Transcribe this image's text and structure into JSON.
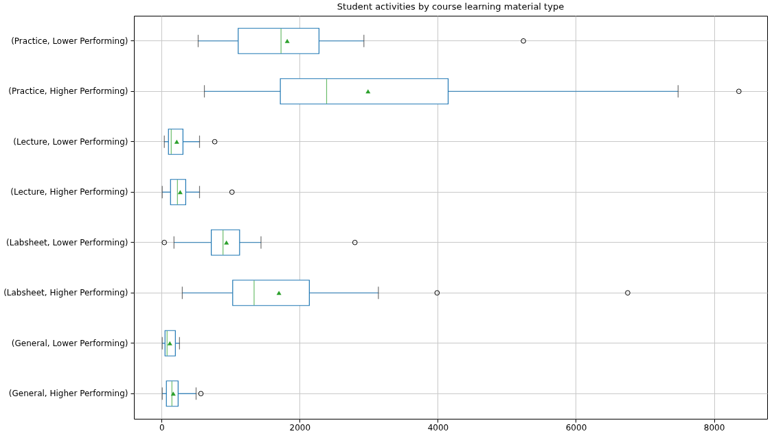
{
  "chart_data": {
    "type": "box",
    "title": "Student activities by course learning material type",
    "orientation": "horizontal",
    "grid": true,
    "categories": [
      "(Practice, Lower Performing)",
      "(Practice, Higher Performing)",
      "(Lecture, Lower Performing)",
      "(Lecture, Higher Performing)",
      "(Labsheet, Lower Performing)",
      "(Labsheet, Higher Performing)",
      "(General, Lower Performing)",
      "(General, Higher Performing)"
    ],
    "xlim": [
      -400,
      8770
    ],
    "xticks": [
      0,
      2000,
      4000,
      6000,
      8000
    ],
    "series": [
      {
        "color": "#1f77b4",
        "boxes": [
          {
            "low": 530,
            "q1": 1110,
            "median": 1730,
            "q3": 2280,
            "high": 2930,
            "mean": 1820,
            "outliers": [
              5240
            ]
          },
          {
            "low": 620,
            "q1": 1720,
            "median": 2390,
            "q3": 4150,
            "high": 7480,
            "mean": 2990,
            "outliers": [
              8360
            ]
          },
          {
            "low": 40,
            "q1": 100,
            "median": 140,
            "q3": 310,
            "high": 550,
            "mean": 220,
            "outliers": [
              770
            ]
          },
          {
            "low": 10,
            "q1": 130,
            "median": 230,
            "q3": 350,
            "high": 550,
            "mean": 270,
            "outliers": [
              1020
            ]
          },
          {
            "low": 180,
            "q1": 720,
            "median": 890,
            "q3": 1130,
            "high": 1440,
            "mean": 940,
            "outliers": [
              40,
              2800
            ]
          },
          {
            "low": 300,
            "q1": 1030,
            "median": 1340,
            "q3": 2140,
            "high": 3140,
            "mean": 1700,
            "outliers": [
              3990,
              6750
            ]
          },
          {
            "low": 10,
            "q1": 50,
            "median": 80,
            "q3": 200,
            "high": 260,
            "mean": 120
          },
          {
            "low": 10,
            "q1": 70,
            "median": 150,
            "q3": 240,
            "high": 500,
            "mean": 170,
            "outliers": [
              570
            ]
          }
        ]
      }
    ]
  }
}
